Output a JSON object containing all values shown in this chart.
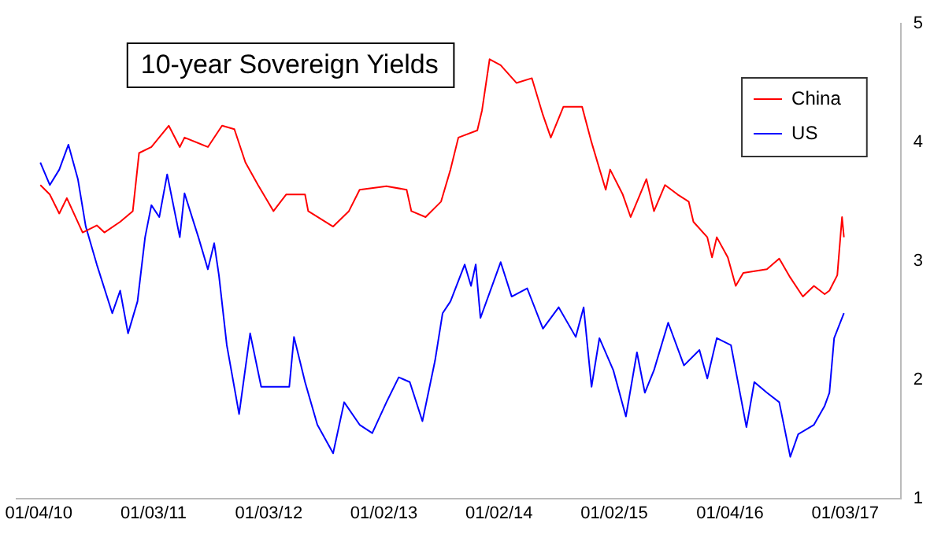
{
  "chart_data": {
    "type": "line",
    "title": "10-year Sovereign Yields",
    "legend": "top right",
    "grid": false,
    "marker": "none",
    "line_style": "solid",
    "xlim": [
      "2009-10-25",
      "2017-06-28"
    ],
    "xticks": [
      {
        "value": "2010-01-04",
        "label": "01/04/10"
      },
      {
        "value": "2011-01-03",
        "label": "01/03/11"
      },
      {
        "value": "2012-01-03",
        "label": "01/03/12"
      },
      {
        "value": "2013-01-02",
        "label": "01/02/13"
      },
      {
        "value": "2014-01-02",
        "label": "01/02/14"
      },
      {
        "value": "2015-01-02",
        "label": "01/02/15"
      },
      {
        "value": "2016-01-04",
        "label": "01/04/16"
      },
      {
        "value": "2017-01-03",
        "label": "01/03/17"
      }
    ],
    "ylim": [
      1,
      5
    ],
    "yticks": [
      1,
      2,
      3,
      4,
      5
    ],
    "series": [
      {
        "name": "China",
        "color": "#ff0000",
        "x": [
          "2010-01-09",
          "2010-02-08",
          "2010-03-10",
          "2010-04-03",
          "2010-05-23",
          "2010-07-07",
          "2010-07-31",
          "2010-09-19",
          "2010-10-29",
          "2010-11-18",
          "2010-12-27",
          "2011-02-20",
          "2011-03-27",
          "2011-04-11",
          "2011-06-24",
          "2011-08-08",
          "2011-09-16",
          "2011-10-21",
          "2011-11-30",
          "2012-01-18",
          "2012-02-27",
          "2012-04-27",
          "2012-05-07",
          "2012-07-25",
          "2012-09-13",
          "2012-10-17",
          "2013-01-10",
          "2013-03-15",
          "2013-03-30",
          "2013-05-14",
          "2013-07-02",
          "2013-08-01",
          "2013-08-26",
          "2013-10-25",
          "2013-11-09",
          "2013-12-03",
          "2014-01-07",
          "2014-02-26",
          "2014-04-16",
          "2014-05-21",
          "2014-06-15",
          "2014-07-25",
          "2014-09-22",
          "2014-10-22",
          "2014-12-06",
          "2014-12-20",
          "2015-01-29",
          "2015-02-23",
          "2015-04-14",
          "2015-05-08",
          "2015-06-12",
          "2015-07-22",
          "2015-08-26",
          "2015-09-10",
          "2015-10-24",
          "2015-11-08",
          "2015-11-23",
          "2015-12-28",
          "2016-01-22",
          "2016-02-15",
          "2016-04-30",
          "2016-06-08",
          "2016-07-13",
          "2016-08-22",
          "2016-09-26",
          "2016-10-30",
          "2016-11-14",
          "2016-12-09",
          "2016-12-24",
          "2016-12-30"
        ],
        "values": [
          3.64,
          3.56,
          3.4,
          3.53,
          3.24,
          3.3,
          3.24,
          3.33,
          3.42,
          3.91,
          3.96,
          4.14,
          3.96,
          4.04,
          3.96,
          4.14,
          4.11,
          3.83,
          3.64,
          3.42,
          3.56,
          3.56,
          3.42,
          3.29,
          3.42,
          3.6,
          3.63,
          3.6,
          3.42,
          3.37,
          3.5,
          3.77,
          4.04,
          4.1,
          4.27,
          4.7,
          4.65,
          4.5,
          4.54,
          4.23,
          4.04,
          4.3,
          4.3,
          4.0,
          3.6,
          3.77,
          3.56,
          3.37,
          3.69,
          3.42,
          3.64,
          3.56,
          3.5,
          3.33,
          3.2,
          3.03,
          3.2,
          3.03,
          2.79,
          2.9,
          2.93,
          3.02,
          2.86,
          2.7,
          2.79,
          2.72,
          2.75,
          2.88,
          3.37,
          3.2
        ]
      },
      {
        "name": "US",
        "color": "#0000ff",
        "x": [
          "2010-01-09",
          "2010-02-08",
          "2010-03-10",
          "2010-04-08",
          "2010-05-08",
          "2010-06-02",
          "2010-07-07",
          "2010-08-25",
          "2010-09-19",
          "2010-10-14",
          "2010-11-13",
          "2010-12-07",
          "2010-12-27",
          "2011-01-21",
          "2011-02-15",
          "2011-03-27",
          "2011-04-11",
          "2011-05-25",
          "2011-06-24",
          "2011-07-14",
          "2011-07-29",
          "2011-08-23",
          "2011-10-01",
          "2011-11-05",
          "2011-12-10",
          "2012-01-28",
          "2012-03-08",
          "2012-03-23",
          "2012-04-27",
          "2012-06-05",
          "2012-07-25",
          "2012-08-29",
          "2012-10-17",
          "2012-11-26",
          "2013-01-10",
          "2013-02-18",
          "2013-03-25",
          "2013-05-04",
          "2013-06-13",
          "2013-07-07",
          "2013-08-01",
          "2013-09-15",
          "2013-10-05",
          "2013-10-20",
          "2013-11-04",
          "2014-01-07",
          "2014-02-11",
          "2014-04-01",
          "2014-05-21",
          "2014-07-10",
          "2014-09-02",
          "2014-09-27",
          "2014-10-22",
          "2014-11-16",
          "2014-12-30",
          "2015-02-08",
          "2015-03-15",
          "2015-04-09",
          "2015-05-08",
          "2015-06-22",
          "2015-08-11",
          "2015-09-29",
          "2015-10-24",
          "2015-11-23",
          "2016-01-07",
          "2016-02-25",
          "2016-03-21",
          "2016-04-30",
          "2016-06-08",
          "2016-07-13",
          "2016-08-07",
          "2016-09-26",
          "2016-10-30",
          "2016-11-14",
          "2016-11-29",
          "2016-12-30"
        ],
        "values": [
          3.83,
          3.64,
          3.77,
          3.98,
          3.69,
          3.29,
          2.97,
          2.56,
          2.75,
          2.39,
          2.66,
          3.2,
          3.47,
          3.37,
          3.73,
          3.2,
          3.57,
          3.2,
          2.93,
          3.15,
          2.88,
          2.29,
          1.71,
          2.39,
          1.94,
          1.94,
          1.94,
          2.36,
          1.98,
          1.62,
          1.38,
          1.81,
          1.62,
          1.55,
          1.81,
          2.02,
          1.98,
          1.65,
          2.16,
          2.56,
          2.66,
          2.97,
          2.79,
          2.97,
          2.52,
          2.99,
          2.7,
          2.77,
          2.43,
          2.61,
          2.36,
          2.61,
          1.94,
          2.35,
          2.08,
          1.69,
          2.23,
          1.89,
          2.08,
          2.48,
          2.12,
          2.25,
          2.01,
          2.35,
          2.29,
          1.6,
          1.98,
          1.89,
          1.81,
          1.35,
          1.54,
          1.62,
          1.78,
          1.89,
          2.35,
          2.56
        ]
      }
    ]
  }
}
